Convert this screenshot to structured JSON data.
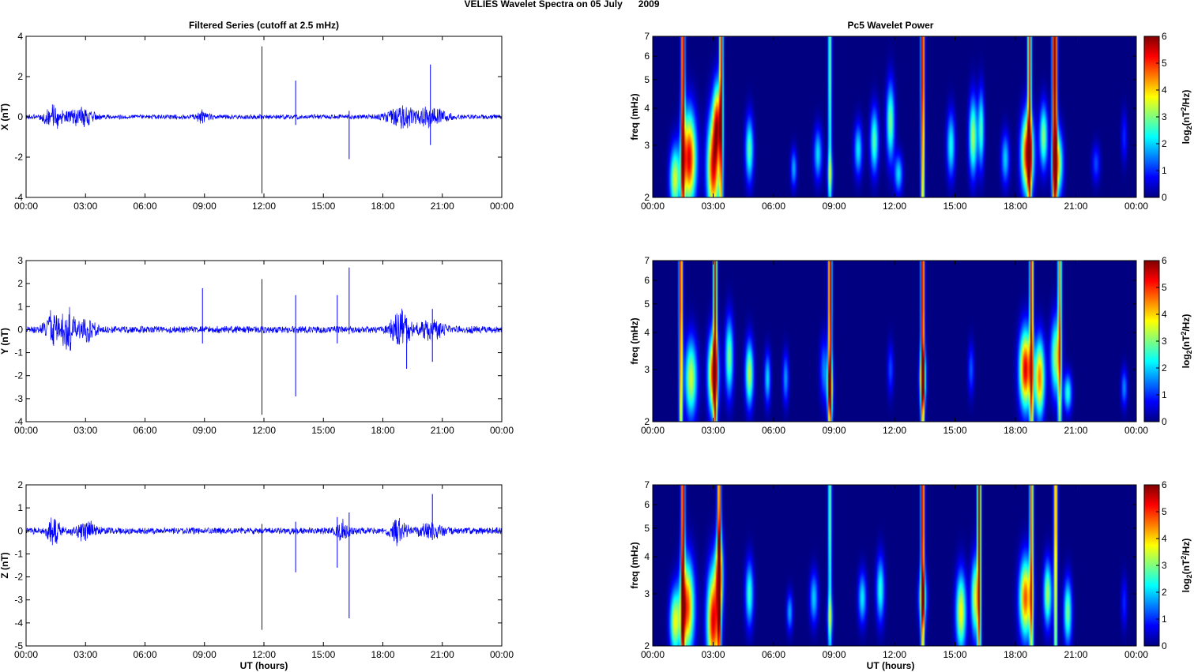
{
  "figure": {
    "title": "VELIES Wavelet Spectra on 05 July      2009",
    "left_title": "Filtered Series (cutoff at 2.5 mHz)",
    "right_title": "Pc5 Wavelet Power",
    "x_label": "UT (hours)",
    "freq_label": "freq (mHz)",
    "colorbar_label_base": "log",
    "colorbar_label_sub": "2",
    "colorbar_label_pre": "(nT",
    "colorbar_label_sup": "2",
    "colorbar_label_post": "/Hz)",
    "colormap": "jet",
    "trace_color": "#0000ff",
    "background_color": "#00008f"
  },
  "chart_data": [
    {
      "type": "line",
      "name": "x-component",
      "ylabel": "X (nT)",
      "xlim": [
        0,
        24
      ],
      "ylim": [
        -4,
        4
      ],
      "yticks": [
        -4,
        -2,
        0,
        2,
        4
      ],
      "xticks": [
        "00:00",
        "03:00",
        "06:00",
        "09:00",
        "12:00",
        "15:00",
        "18:00",
        "21:00",
        "00:00"
      ],
      "noise_amplitude": 0.12,
      "bursts": [
        [
          1.4,
          0.55,
          0.5
        ],
        [
          2.8,
          0.45,
          0.6
        ],
        [
          8.9,
          0.3,
          0.3
        ],
        [
          18.9,
          0.5,
          0.7
        ],
        [
          20.4,
          0.45,
          0.8
        ]
      ],
      "spikes": [
        [
          11.9,
          3.5,
          -3.8
        ],
        [
          13.6,
          1.8,
          -0.4
        ],
        [
          16.3,
          0.3,
          -2.1
        ],
        [
          20.4,
          2.6,
          -1.4
        ]
      ]
    },
    {
      "type": "line",
      "name": "y-component",
      "ylabel": "Y (nT)",
      "xlim": [
        0,
        24
      ],
      "ylim": [
        -4,
        3
      ],
      "yticks": [
        -4,
        -3,
        -2,
        -1,
        0,
        1,
        2,
        3
      ],
      "xticks": [
        "00:00",
        "03:00",
        "06:00",
        "09:00",
        "12:00",
        "15:00",
        "18:00",
        "21:00",
        "00:00"
      ],
      "noise_amplitude": 0.16,
      "bursts": [
        [
          1.3,
          0.9,
          0.35
        ],
        [
          2.1,
          0.9,
          0.35
        ],
        [
          3.1,
          0.5,
          0.45
        ],
        [
          18.9,
          0.8,
          0.5
        ],
        [
          20.4,
          0.4,
          0.6
        ]
      ],
      "spikes": [
        [
          8.9,
          1.8,
          -0.6
        ],
        [
          11.9,
          2.2,
          -3.7
        ],
        [
          13.6,
          1.5,
          -2.9
        ],
        [
          15.7,
          1.5,
          -0.6
        ],
        [
          16.3,
          2.7,
          -0.2
        ],
        [
          19.2,
          0.5,
          -1.7
        ],
        [
          20.5,
          0.9,
          -1.4
        ]
      ]
    },
    {
      "type": "line",
      "name": "z-component",
      "ylabel": "Z (nT)",
      "xlim": [
        0,
        24
      ],
      "ylim": [
        -5,
        2
      ],
      "yticks": [
        -5,
        -4,
        -3,
        -2,
        -1,
        0,
        1,
        2
      ],
      "xticks": [
        "00:00",
        "03:00",
        "06:00",
        "09:00",
        "12:00",
        "15:00",
        "18:00",
        "21:00",
        "00:00"
      ],
      "noise_amplitude": 0.15,
      "bursts": [
        [
          1.4,
          0.6,
          0.3
        ],
        [
          3.0,
          0.4,
          0.5
        ],
        [
          16.0,
          0.4,
          0.3
        ],
        [
          18.8,
          0.6,
          0.4
        ],
        [
          20.4,
          0.3,
          0.6
        ]
      ],
      "spikes": [
        [
          11.9,
          0.3,
          -4.3
        ],
        [
          13.6,
          0.4,
          -1.8
        ],
        [
          15.7,
          0.6,
          -1.6
        ],
        [
          16.3,
          0.8,
          -3.8
        ],
        [
          20.5,
          1.6,
          -0.4
        ]
      ]
    },
    {
      "type": "heatmap",
      "name": "x-component wavelet power",
      "xlim": [
        0,
        24
      ],
      "ylim": [
        2,
        7
      ],
      "yscale": "log",
      "yticks": [
        2,
        3,
        4,
        5,
        6,
        7
      ],
      "xticks": [
        "00:00",
        "03:00",
        "06:00",
        "09:00",
        "12:00",
        "15:00",
        "18:00",
        "21:00",
        "00:00"
      ],
      "colorbar": {
        "min": 0,
        "max": 6,
        "ticks": [
          0,
          1,
          2,
          3,
          4,
          5,
          6
        ]
      },
      "blobs": [
        [
          1.8,
          2.7,
          0.35,
          0.35,
          5.5
        ],
        [
          1.1,
          2.3,
          0.25,
          0.25,
          3.5
        ],
        [
          3.0,
          2.5,
          0.3,
          0.4,
          5.2
        ],
        [
          3.2,
          3.6,
          0.2,
          0.3,
          4.3
        ],
        [
          4.8,
          2.9,
          0.2,
          0.25,
          2.8
        ],
        [
          7.0,
          2.5,
          0.15,
          0.15,
          1.8
        ],
        [
          8.2,
          2.8,
          0.2,
          0.2,
          2.1
        ],
        [
          8.8,
          2.4,
          0.15,
          0.15,
          1.5
        ],
        [
          10.2,
          2.9,
          0.2,
          0.2,
          2.2
        ],
        [
          11.0,
          3.1,
          0.2,
          0.25,
          2.8
        ],
        [
          11.8,
          3.6,
          0.2,
          0.3,
          3.0
        ],
        [
          12.2,
          2.4,
          0.2,
          0.15,
          2.1
        ],
        [
          14.8,
          3.0,
          0.2,
          0.25,
          2.4
        ],
        [
          15.9,
          3.2,
          0.2,
          0.3,
          3.3
        ],
        [
          16.3,
          3.4,
          0.15,
          0.3,
          2.7
        ],
        [
          17.5,
          2.7,
          0.2,
          0.2,
          2.0
        ],
        [
          18.6,
          2.8,
          0.3,
          0.3,
          5.6
        ],
        [
          19.4,
          3.2,
          0.2,
          0.25,
          3.1
        ],
        [
          20.1,
          2.6,
          0.25,
          0.25,
          3.8
        ],
        [
          22.0,
          2.6,
          0.2,
          0.15,
          1.2
        ],
        [
          23.4,
          3.2,
          0.15,
          0.2,
          1.0
        ]
      ],
      "streaks": [
        [
          1.5,
          6.0
        ],
        [
          3.4,
          5.2
        ],
        [
          8.8,
          3.0
        ],
        [
          13.4,
          6.0
        ],
        [
          18.7,
          5.2
        ],
        [
          20.0,
          5.0
        ],
        [
          19.9,
          4.2
        ]
      ]
    },
    {
      "type": "heatmap",
      "name": "y-component wavelet power",
      "xlim": [
        0,
        24
      ],
      "ylim": [
        2,
        7
      ],
      "yscale": "log",
      "yticks": [
        2,
        3,
        4,
        5,
        6,
        7
      ],
      "xticks": [
        "00:00",
        "03:00",
        "06:00",
        "09:00",
        "12:00",
        "15:00",
        "18:00",
        "21:00",
        "00:00"
      ],
      "colorbar": {
        "min": 0,
        "max": 6,
        "ticks": [
          0,
          1,
          2,
          3,
          4,
          5,
          6
        ]
      },
      "blobs": [
        [
          1.9,
          2.8,
          0.3,
          0.3,
          3.5
        ],
        [
          3.0,
          2.9,
          0.25,
          0.3,
          5.0
        ],
        [
          3.8,
          3.3,
          0.2,
          0.3,
          3.0
        ],
        [
          4.8,
          2.9,
          0.2,
          0.25,
          3.4
        ],
        [
          5.7,
          2.8,
          0.15,
          0.2,
          2.1
        ],
        [
          6.6,
          2.8,
          0.15,
          0.2,
          1.7
        ],
        [
          8.5,
          3.0,
          0.2,
          0.25,
          1.5
        ],
        [
          8.8,
          2.6,
          0.15,
          0.2,
          3.3
        ],
        [
          11.8,
          3.0,
          0.15,
          0.2,
          1.2
        ],
        [
          13.4,
          2.8,
          0.15,
          0.2,
          4.0
        ],
        [
          15.8,
          3.0,
          0.15,
          0.2,
          1.3
        ],
        [
          18.5,
          3.0,
          0.3,
          0.3,
          5.5
        ],
        [
          19.2,
          2.8,
          0.25,
          0.3,
          4.5
        ],
        [
          20.0,
          3.3,
          0.25,
          0.3,
          3.2
        ],
        [
          20.6,
          2.5,
          0.2,
          0.15,
          2.5
        ],
        [
          23.4,
          2.6,
          0.15,
          0.15,
          1.6
        ]
      ],
      "streaks": [
        [
          1.4,
          5.5
        ],
        [
          3.1,
          5.8
        ],
        [
          8.8,
          6.0
        ],
        [
          13.4,
          6.0
        ],
        [
          18.8,
          5.5
        ],
        [
          20.2,
          4.5
        ]
      ]
    },
    {
      "type": "heatmap",
      "name": "z-component wavelet power",
      "xlim": [
        0,
        24
      ],
      "ylim": [
        2,
        7
      ],
      "yscale": "log",
      "yticks": [
        2,
        3,
        4,
        5,
        6,
        7
      ],
      "xticks": [
        "00:00",
        "03:00",
        "06:00",
        "09:00",
        "12:00",
        "15:00",
        "18:00",
        "21:00",
        "00:00"
      ],
      "colorbar": {
        "min": 0,
        "max": 6,
        "ticks": [
          0,
          1,
          2,
          3,
          4,
          5,
          6
        ]
      },
      "blobs": [
        [
          1.7,
          2.7,
          0.35,
          0.35,
          5.0
        ],
        [
          1.1,
          2.4,
          0.25,
          0.25,
          3.5
        ],
        [
          3.0,
          2.4,
          0.3,
          0.4,
          5.4
        ],
        [
          3.3,
          3.5,
          0.2,
          0.3,
          4.0
        ],
        [
          4.8,
          3.0,
          0.2,
          0.25,
          2.6
        ],
        [
          6.8,
          2.6,
          0.15,
          0.15,
          1.8
        ],
        [
          8.0,
          2.9,
          0.2,
          0.2,
          2.0
        ],
        [
          8.8,
          2.5,
          0.15,
          0.15,
          1.5
        ],
        [
          10.4,
          2.9,
          0.2,
          0.2,
          2.2
        ],
        [
          11.3,
          3.1,
          0.2,
          0.25,
          2.5
        ],
        [
          13.4,
          2.9,
          0.2,
          0.2,
          2.8
        ],
        [
          15.3,
          2.6,
          0.25,
          0.3,
          3.8
        ],
        [
          16.0,
          2.9,
          0.2,
          0.3,
          3.5
        ],
        [
          18.5,
          2.9,
          0.3,
          0.3,
          4.8
        ],
        [
          19.6,
          3.0,
          0.2,
          0.25,
          3.3
        ],
        [
          20.6,
          2.6,
          0.2,
          0.25,
          3.0
        ],
        [
          23.4,
          2.8,
          0.15,
          0.2,
          1.0
        ]
      ],
      "streaks": [
        [
          1.5,
          6.0
        ],
        [
          3.3,
          5.2
        ],
        [
          8.8,
          3.0
        ],
        [
          13.4,
          6.0
        ],
        [
          16.2,
          6.0
        ],
        [
          18.8,
          4.8
        ],
        [
          20.0,
          4.8
        ]
      ]
    }
  ]
}
